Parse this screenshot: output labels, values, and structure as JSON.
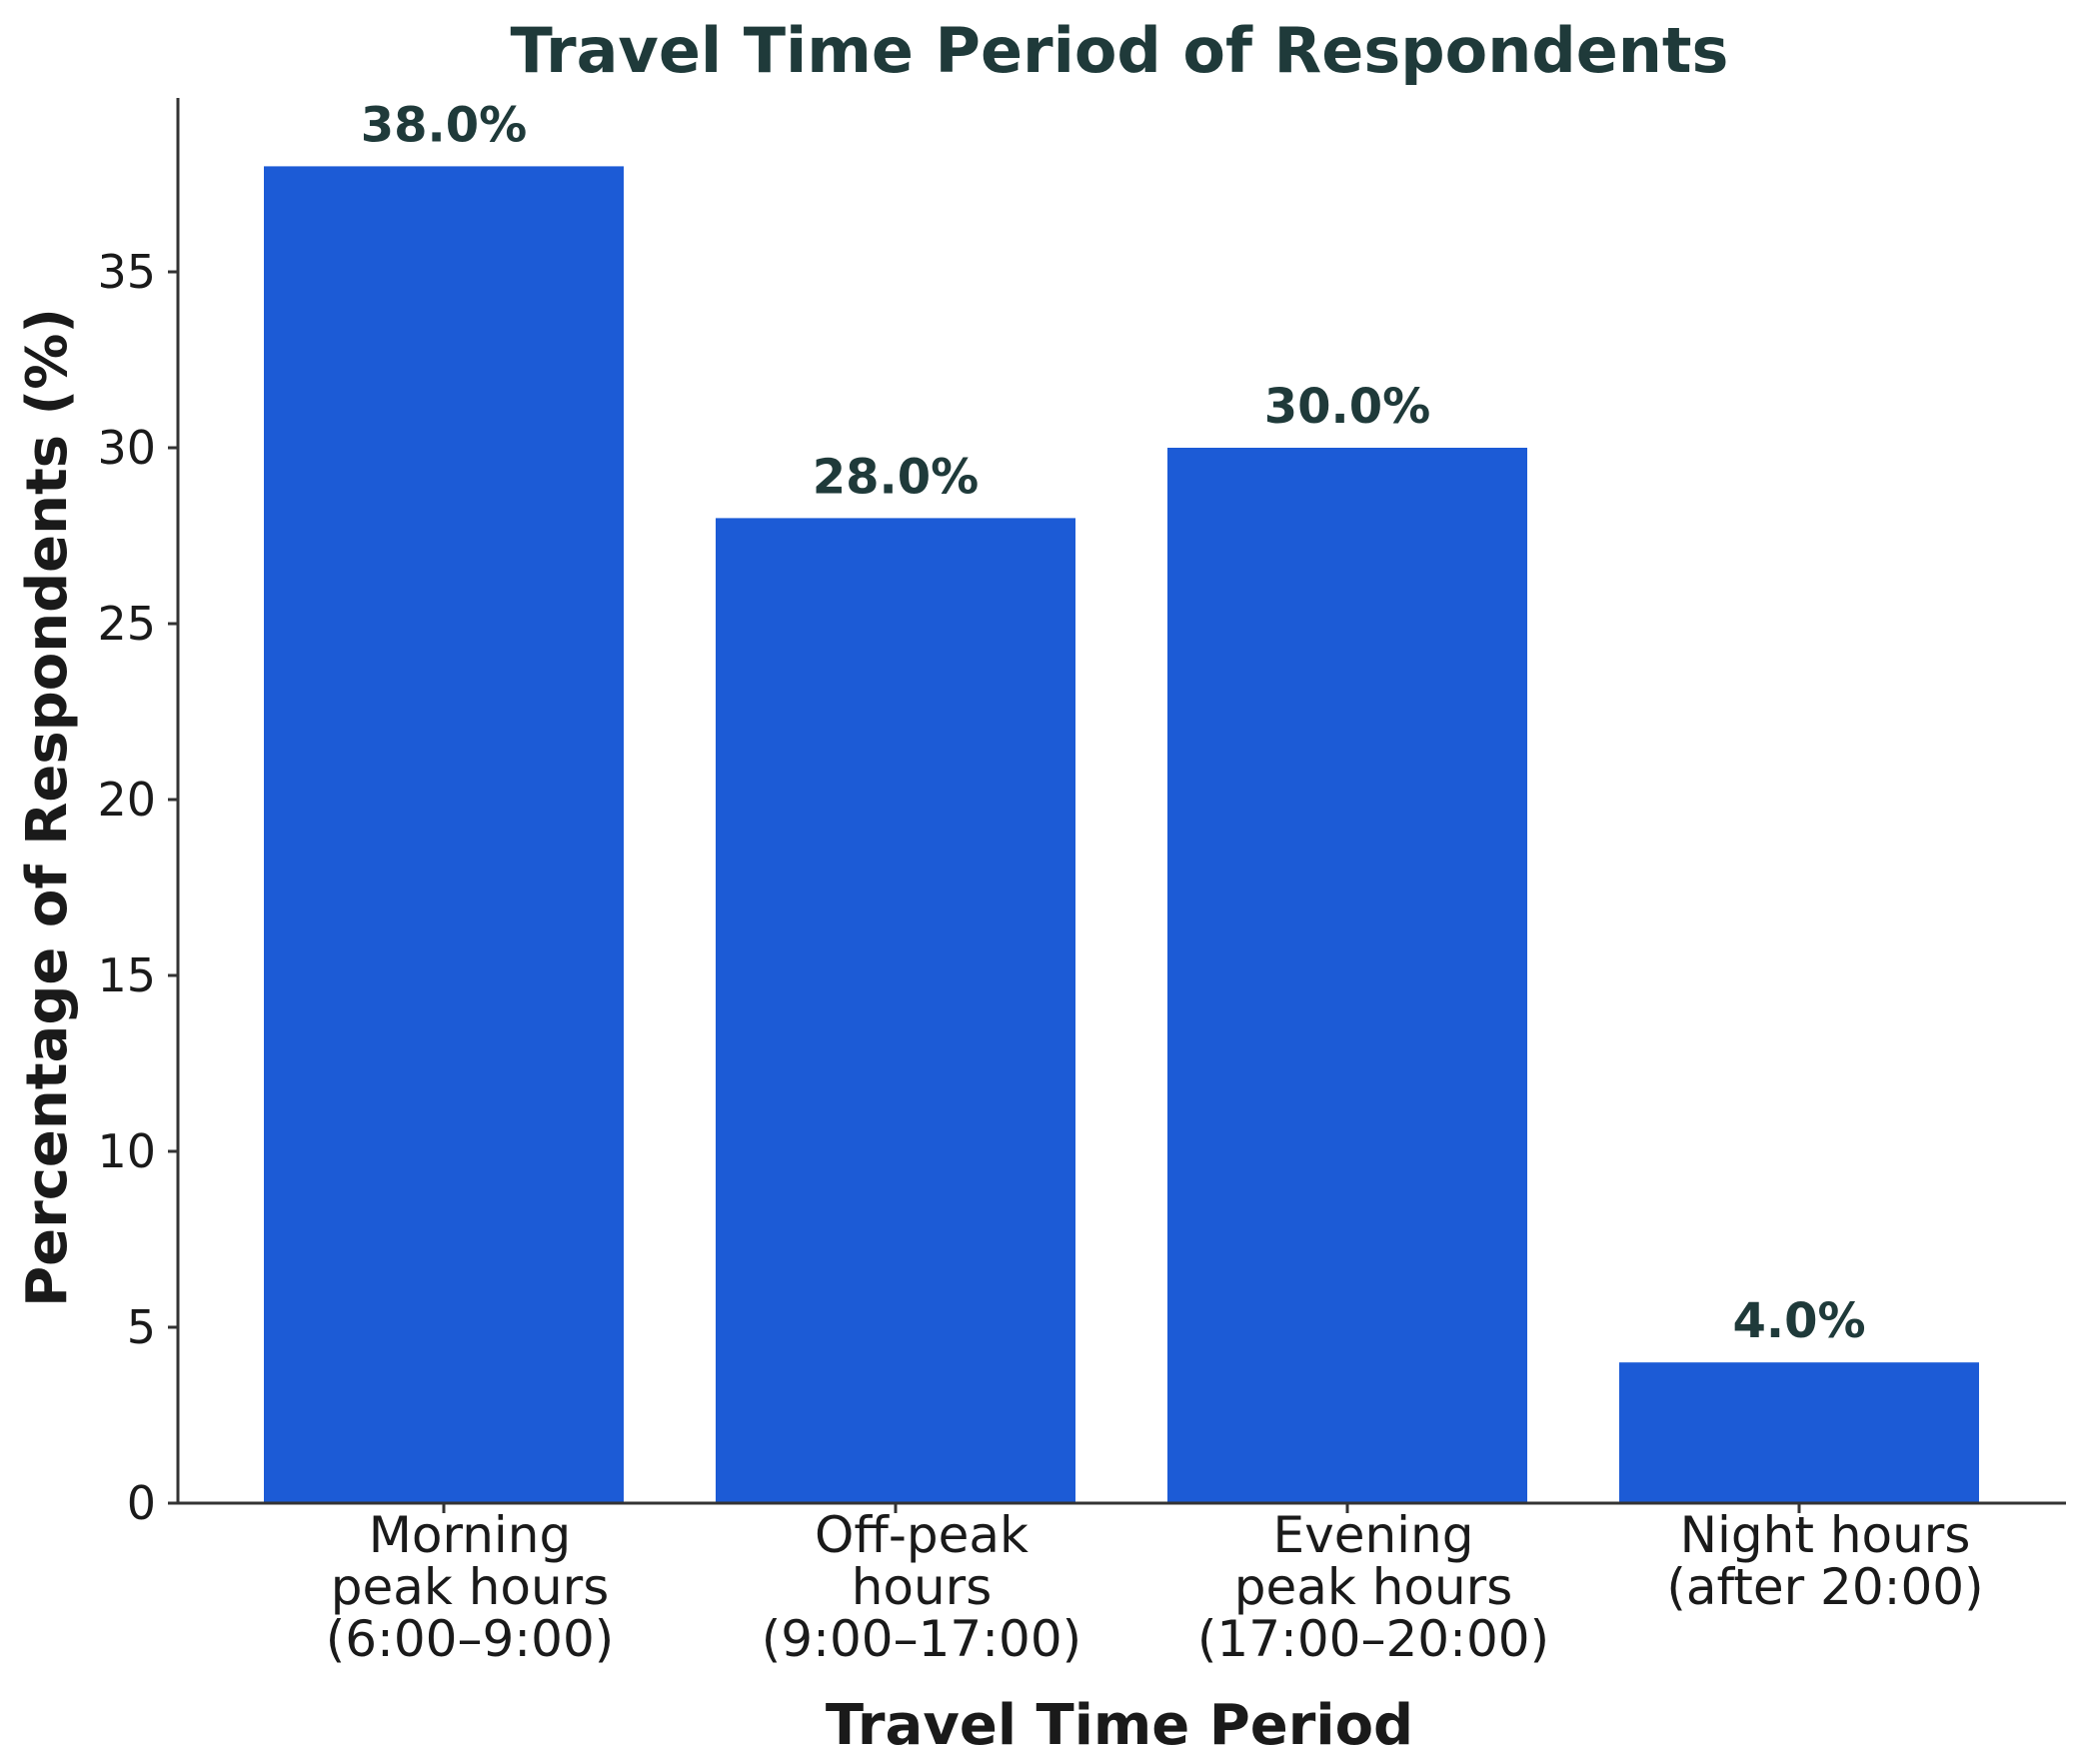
{
  "chart_data": {
    "type": "bar",
    "title": "Travel Time Period of Respondents",
    "xlabel": "Travel Time Period",
    "ylabel": "Percentage of Respondents (%)",
    "categories": [
      [
        "Morning",
        "peak hours",
        "(6:00–9:00)"
      ],
      [
        "Off-peak",
        "hours",
        "(9:00–17:00)"
      ],
      [
        "Evening",
        "peak hours",
        "(17:00–20:00)"
      ],
      [
        "Night hours",
        "(after 20:00)"
      ]
    ],
    "values": [
      38.0,
      28.0,
      30.0,
      4.0
    ],
    "data_labels": [
      "38.0%",
      "28.0%",
      "30.0%",
      "4.0%"
    ],
    "yticks": [
      0,
      5,
      10,
      15,
      20,
      25,
      30,
      35
    ],
    "ylim": [
      0,
      40
    ],
    "grid": false,
    "colors": {
      "bar": "#1c5bd6"
    }
  }
}
